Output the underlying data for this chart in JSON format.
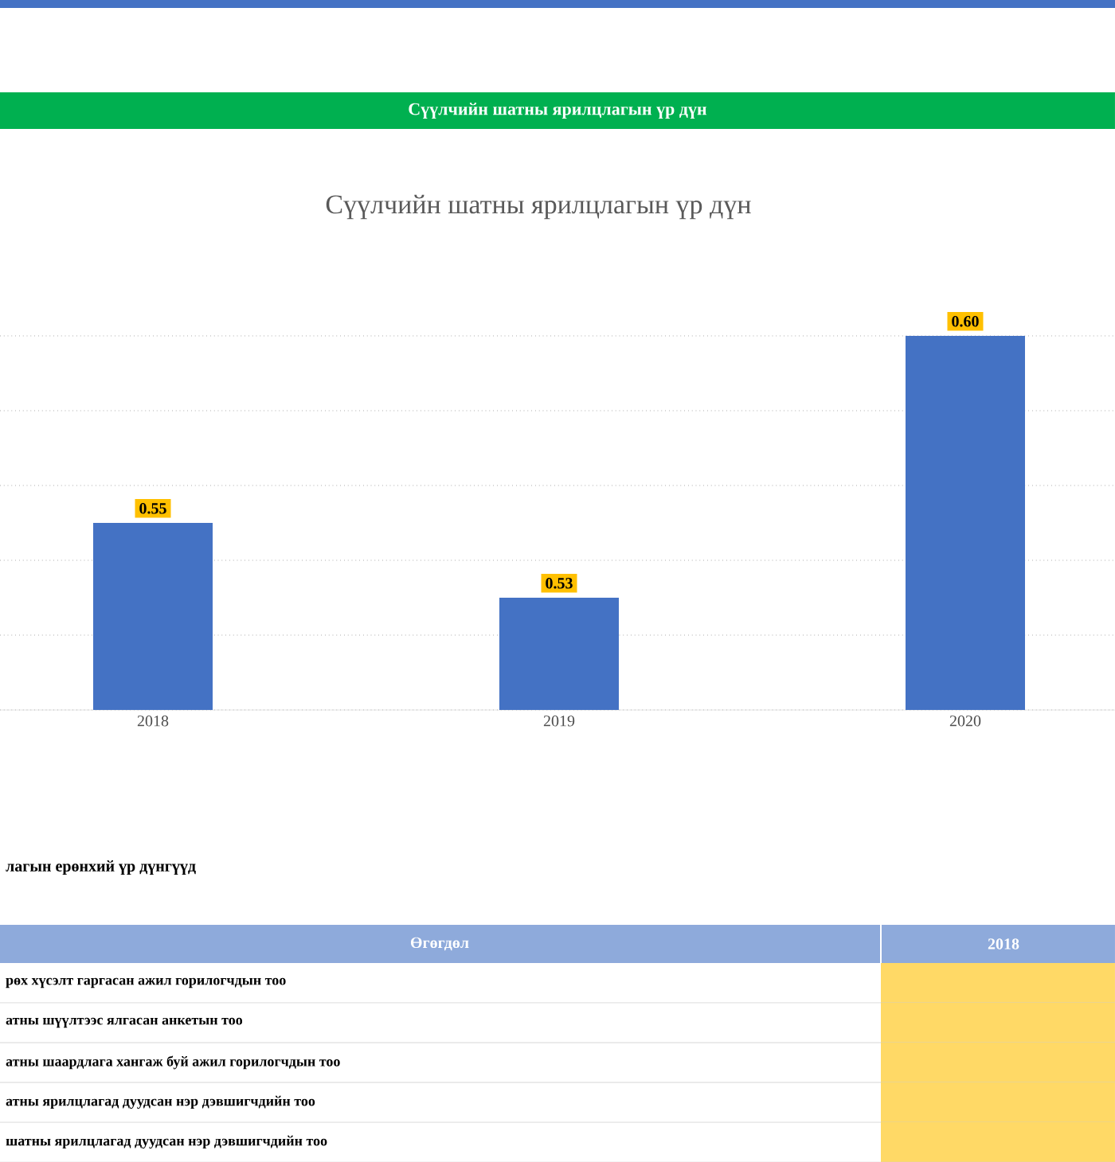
{
  "chart_data": {
    "type": "bar",
    "title": "Сүүлчийн шатны ярилцлагын үр дүн",
    "categories": [
      "2018",
      "2019",
      "2020"
    ],
    "values": [
      0.55,
      0.53,
      0.6
    ],
    "value_labels": [
      "0.55",
      "0.53",
      "0.60"
    ],
    "color": "#4472c4",
    "ylim": [
      0.5,
      0.6
    ],
    "tick_labels": "x",
    "grid": "y",
    "annotations": [
      "Сүүлчийн шатны ярилцлагын үр дүн",
      "лагын ерөнхий үр дүнгүүд",
      "Өгөгдөл",
      "2018",
      "рөх хүсэлт гаргасан ажил горилогчдын тоо",
      "атны шүүлтээс ялгасан анкетын тоо",
      "атны шаардлага хангаж буй ажил горилогчдын тоо",
      "атны ярилцлагад дуудсан нэр дэвшигчдийн тоо",
      "шатны ярилцлагад дуудсан нэр дэвшигчдийн тоо"
    ]
  }
}
